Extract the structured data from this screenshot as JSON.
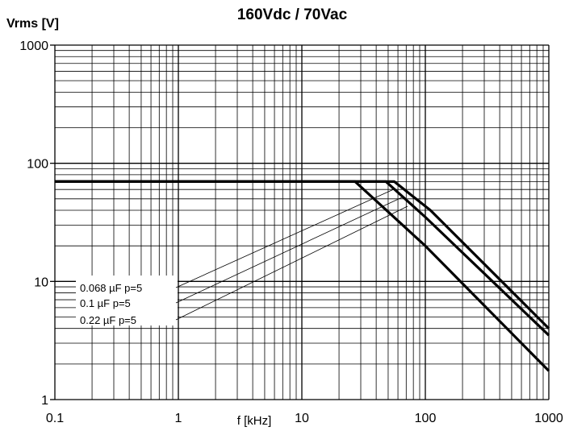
{
  "chart_data": {
    "type": "line",
    "title": "160Vdc / 70Vac",
    "ylabel": "Vrms [V]",
    "xlabel": "f [kHz]",
    "xscale": "log",
    "yscale": "log",
    "xlim": [
      0.1,
      1000
    ],
    "ylim": [
      1,
      1000
    ],
    "grid": true,
    "x_tick_labels": [
      "0.1",
      "1",
      "10",
      "100",
      "1000"
    ],
    "y_tick_labels": [
      "1",
      "10",
      "100",
      "1000"
    ],
    "legend_placement": "left-center",
    "series": [
      {
        "name": "0.068 µF  p=5",
        "x": [
          0.1,
          56,
          110,
          1000
        ],
        "y": [
          70,
          70,
          40,
          4.0
        ]
      },
      {
        "name": "0.1    µF  p=5",
        "x": [
          0.1,
          48,
          100,
          1000
        ],
        "y": [
          70,
          70,
          35,
          3.5
        ]
      },
      {
        "name": "0.22  µF  p=5",
        "x": [
          0.1,
          27,
          100,
          1000
        ],
        "y": [
          70,
          70,
          20,
          1.75
        ]
      }
    ],
    "line_color": "#000000",
    "grid_color": "#000000"
  }
}
